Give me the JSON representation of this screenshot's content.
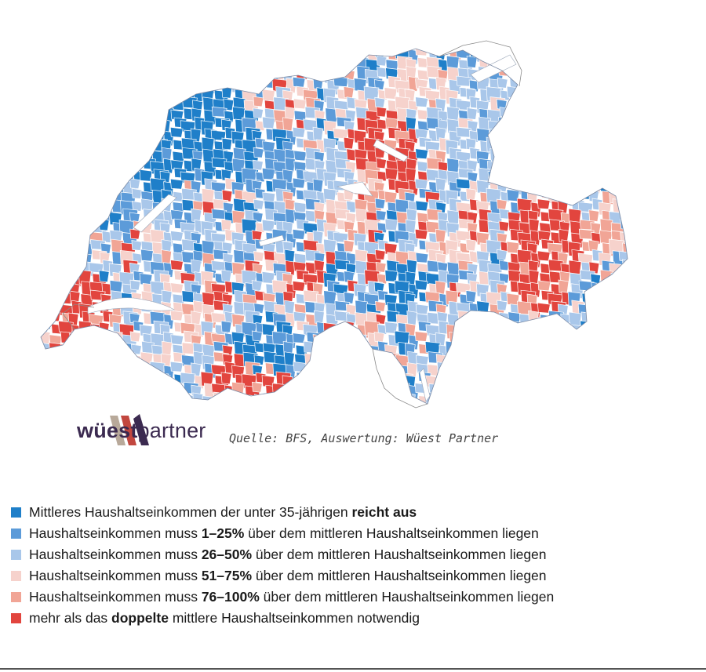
{
  "map": {
    "colors": {
      "level0": "#1f7fc9",
      "level1": "#5c9bd9",
      "level2": "#a9c7ea",
      "level3": "#f6d2cc",
      "level4": "#f1a596",
      "level5": "#e2453e",
      "border": "#ffffff",
      "water": "#ffffff"
    }
  },
  "brand": {
    "prefix": "wüest",
    "suffix": "partner",
    "source": "Quelle: BFS, Auswertung: Wüest Partner"
  },
  "legend": {
    "items": [
      {
        "color": "#1f7fc9",
        "pre": "Mittleres Haushaltseinkommen der unter 35-jährigen ",
        "bold": "reicht aus",
        "post": ""
      },
      {
        "color": "#5c9bd9",
        "pre": "Haushaltseinkommen muss ",
        "bold": "1–25%",
        "post": " über dem mittleren Haushaltseinkommen liegen"
      },
      {
        "color": "#a9c7ea",
        "pre": "Haushaltseinkommen muss ",
        "bold": "26–50%",
        "post": " über dem mittleren Haushaltseinkommen liegen"
      },
      {
        "color": "#f6d2cc",
        "pre": "Haushaltseinkommen muss ",
        "bold": "51–75%",
        "post": " über dem mittleren Haushaltseinkommen liegen"
      },
      {
        "color": "#f1a596",
        "pre": "Haushaltseinkommen muss ",
        "bold": "76–100%",
        "post": " über dem mittleren Haushaltseinkommen liegen"
      },
      {
        "color": "#e2453e",
        "pre": "mehr als das ",
        "bold": "doppelte",
        "post": " mittlere Haushaltseinkommen notwendig"
      }
    ]
  }
}
